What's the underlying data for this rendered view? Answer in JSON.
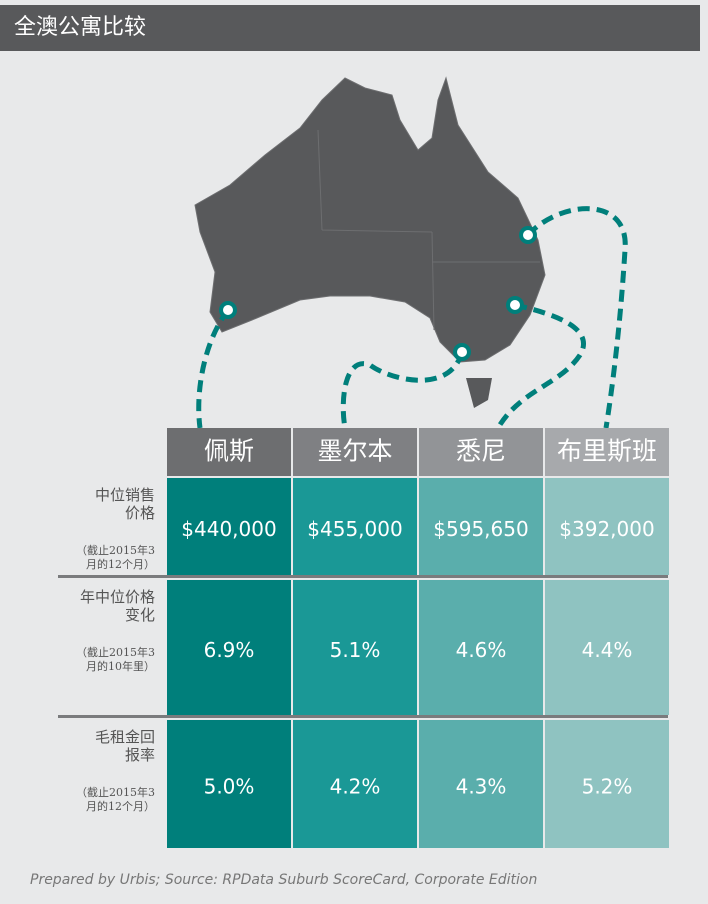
{
  "header": {
    "title": "全澳公寓比较"
  },
  "table": {
    "columns": [
      "佩斯",
      "墨尔本",
      "悉尼",
      "布里斯班"
    ],
    "rows": [
      {
        "label": [
          "中位销售",
          "价格"
        ],
        "note": [
          "（截止2015年3",
          "月的12个月）"
        ],
        "values": [
          "$440,000",
          "$455,000",
          "$595,650",
          "$392,000"
        ]
      },
      {
        "label": [
          "年中位价格",
          "变化"
        ],
        "note": [
          "（截止2015年3",
          "月的10年里）"
        ],
        "values": [
          "6.9%",
          "5.1%",
          "4.6%",
          "4.4%"
        ]
      },
      {
        "label": [
          "毛租金回",
          "报率"
        ],
        "note": [
          "（截止2015年3",
          "月的12个月）"
        ],
        "values": [
          "5.0%",
          "4.2%",
          "4.3%",
          "5.2%"
        ]
      }
    ]
  },
  "footer": {
    "source": "Prepared by Urbis; Source: RPData Suburb ScoreCard, Corporate Edition"
  }
}
